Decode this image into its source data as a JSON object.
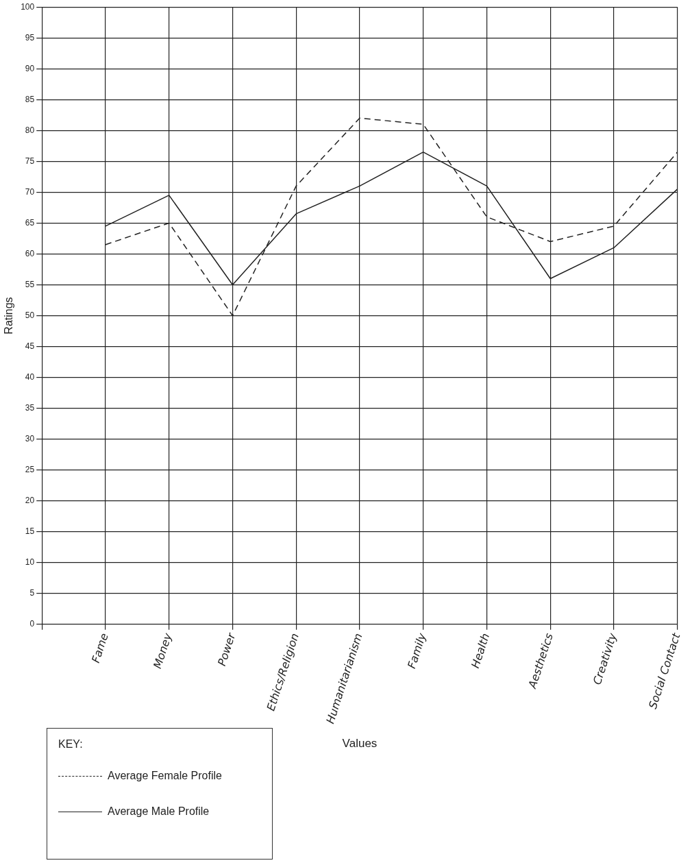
{
  "chart_data": {
    "type": "line",
    "xlabel": "Values",
    "ylabel": "Ratings",
    "legend_title": "KEY:",
    "categories": [
      "Fame",
      "Money",
      "Power",
      "Ethics/Religion",
      "Humanitarianism",
      "Family",
      "Health",
      "Aesthetics",
      "Creativity",
      "Social Contact"
    ],
    "series": [
      {
        "name": "Average Female Profile",
        "color": "#222222",
        "line_style": "dashed",
        "values": [
          61.5,
          65,
          50,
          71,
          82,
          81,
          66,
          62,
          64.5,
          76.5
        ]
      },
      {
        "name": "Average Male Profile",
        "color": "#222222",
        "line_style": "solid",
        "values": [
          64.5,
          69.5,
          55,
          66.5,
          71,
          76.5,
          71,
          56,
          61,
          70.5
        ]
      }
    ],
    "ylim": [
      0,
      100
    ],
    "yticks": [
      0,
      5,
      10,
      15,
      20,
      25,
      30,
      35,
      40,
      45,
      50,
      55,
      60,
      65,
      70,
      75,
      80,
      85,
      90,
      95,
      100
    ],
    "grid": true,
    "legend": "bottom left",
    "marker": "none"
  }
}
